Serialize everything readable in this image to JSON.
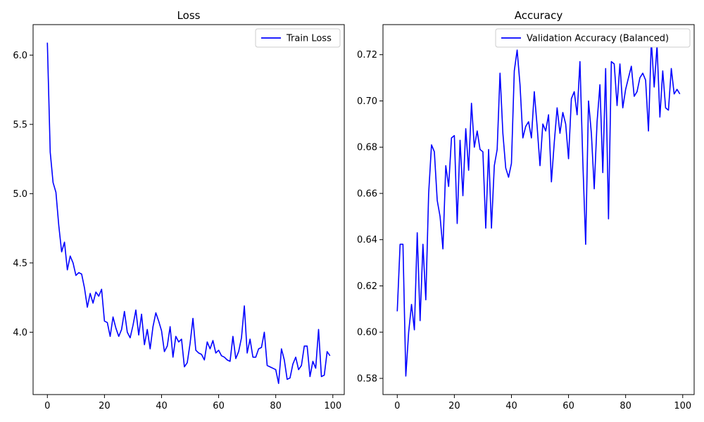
{
  "chart_data": [
    {
      "type": "line",
      "title": "Loss",
      "xlabel": "",
      "ylabel": "",
      "xlim": [
        -5,
        104
      ],
      "ylim": [
        3.55,
        6.22
      ],
      "xticks": [
        0,
        20,
        40,
        60,
        80,
        100
      ],
      "yticks": [
        4.0,
        4.5,
        5.0,
        5.5,
        6.0
      ],
      "ytick_format": 1,
      "grid": false,
      "legend_placement": "top-right",
      "color": "#0000ff",
      "series": [
        {
          "name": "Train Loss",
          "x": [
            0,
            1,
            2,
            3,
            4,
            5,
            6,
            7,
            8,
            9,
            10,
            11,
            12,
            13,
            14,
            15,
            16,
            17,
            18,
            19,
            20,
            21,
            22,
            23,
            24,
            25,
            26,
            27,
            28,
            29,
            30,
            31,
            32,
            33,
            34,
            35,
            36,
            37,
            38,
            39,
            40,
            41,
            42,
            43,
            44,
            45,
            46,
            47,
            48,
            49,
            50,
            51,
            52,
            53,
            54,
            55,
            56,
            57,
            58,
            59,
            60,
            61,
            62,
            63,
            64,
            65,
            66,
            67,
            68,
            69,
            70,
            71,
            72,
            73,
            74,
            75,
            76,
            77,
            78,
            79,
            80,
            81,
            82,
            83,
            84,
            85,
            86,
            87,
            88,
            89,
            90,
            91,
            92,
            93,
            94,
            95,
            96,
            97,
            98,
            99
          ],
          "values": [
            6.09,
            5.3,
            5.08,
            5.01,
            4.77,
            4.58,
            4.65,
            4.45,
            4.55,
            4.5,
            4.41,
            4.43,
            4.42,
            4.32,
            4.18,
            4.28,
            4.21,
            4.29,
            4.26,
            4.31,
            4.08,
            4.07,
            3.97,
            4.11,
            4.03,
            3.97,
            4.02,
            4.15,
            4.0,
            3.96,
            4.05,
            4.16,
            3.98,
            4.13,
            3.91,
            4.02,
            3.88,
            4.04,
            4.14,
            4.08,
            4.01,
            3.86,
            3.9,
            4.04,
            3.82,
            3.97,
            3.93,
            3.95,
            3.75,
            3.78,
            3.92,
            4.1,
            3.87,
            3.85,
            3.84,
            3.8,
            3.93,
            3.88,
            3.94,
            3.85,
            3.87,
            3.83,
            3.82,
            3.8,
            3.79,
            3.97,
            3.81,
            3.86,
            3.96,
            4.19,
            3.85,
            3.95,
            3.82,
            3.82,
            3.88,
            3.89,
            4.0,
            3.76,
            3.75,
            3.74,
            3.73,
            3.63,
            3.88,
            3.8,
            3.66,
            3.67,
            3.77,
            3.82,
            3.73,
            3.76,
            3.9,
            3.9,
            3.68,
            3.79,
            3.74,
            4.02,
            3.68,
            3.69,
            3.86,
            3.83
          ]
        }
      ]
    },
    {
      "type": "line",
      "title": "Accuracy",
      "xlabel": "",
      "ylabel": "",
      "xlim": [
        -5,
        104
      ],
      "ylim": [
        0.573,
        0.733
      ],
      "xticks": [
        0,
        20,
        40,
        60,
        80,
        100
      ],
      "yticks": [
        0.58,
        0.6,
        0.62,
        0.64,
        0.66,
        0.68,
        0.7,
        0.72
      ],
      "ytick_format": 2,
      "grid": false,
      "legend_placement": "top-right",
      "color": "#0000ff",
      "series": [
        {
          "name": "Validation Accuracy (Balanced)",
          "x": [
            0,
            1,
            2,
            3,
            4,
            5,
            6,
            7,
            8,
            9,
            10,
            11,
            12,
            13,
            14,
            15,
            16,
            17,
            18,
            19,
            20,
            21,
            22,
            23,
            24,
            25,
            26,
            27,
            28,
            29,
            30,
            31,
            32,
            33,
            34,
            35,
            36,
            37,
            38,
            39,
            40,
            41,
            42,
            43,
            44,
            45,
            46,
            47,
            48,
            49,
            50,
            51,
            52,
            53,
            54,
            55,
            56,
            57,
            58,
            59,
            60,
            61,
            62,
            63,
            64,
            65,
            66,
            67,
            68,
            69,
            70,
            71,
            72,
            73,
            74,
            75,
            76,
            77,
            78,
            79,
            80,
            81,
            82,
            83,
            84,
            85,
            86,
            87,
            88,
            89,
            90,
            91,
            92,
            93,
            94,
            95,
            96,
            97,
            98,
            99
          ],
          "values": [
            0.609,
            0.638,
            0.638,
            0.581,
            0.6,
            0.612,
            0.601,
            0.643,
            0.605,
            0.638,
            0.614,
            0.66,
            0.681,
            0.678,
            0.657,
            0.65,
            0.636,
            0.672,
            0.663,
            0.684,
            0.685,
            0.647,
            0.683,
            0.659,
            0.688,
            0.67,
            0.699,
            0.68,
            0.687,
            0.679,
            0.678,
            0.645,
            0.679,
            0.645,
            0.672,
            0.679,
            0.712,
            0.686,
            0.671,
            0.667,
            0.673,
            0.713,
            0.722,
            0.707,
            0.684,
            0.689,
            0.691,
            0.684,
            0.704,
            0.689,
            0.672,
            0.69,
            0.687,
            0.694,
            0.665,
            0.682,
            0.697,
            0.686,
            0.695,
            0.69,
            0.675,
            0.701,
            0.704,
            0.694,
            0.717,
            0.674,
            0.638,
            0.7,
            0.686,
            0.662,
            0.691,
            0.707,
            0.669,
            0.714,
            0.649,
            0.717,
            0.716,
            0.698,
            0.716,
            0.697,
            0.705,
            0.71,
            0.715,
            0.702,
            0.704,
            0.71,
            0.712,
            0.709,
            0.687,
            0.726,
            0.706,
            0.724,
            0.693,
            0.713,
            0.697,
            0.696,
            0.714,
            0.703,
            0.705,
            0.703
          ]
        }
      ]
    }
  ]
}
